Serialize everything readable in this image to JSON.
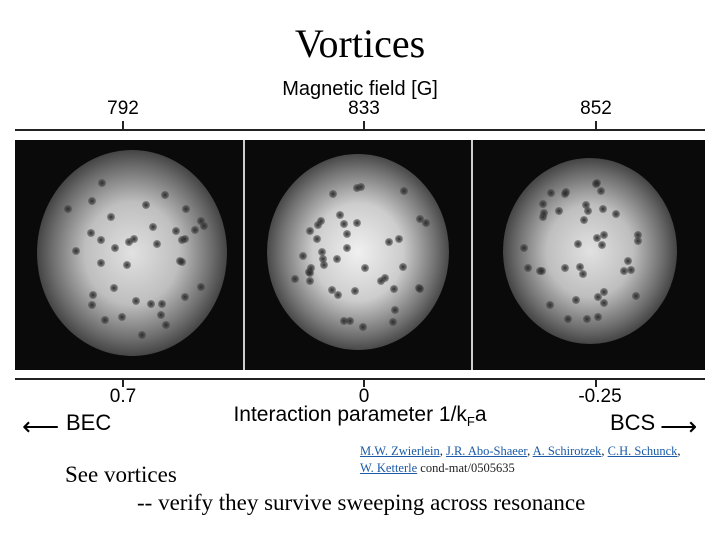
{
  "title": "Vortices",
  "figure": {
    "top_axis_title": "Magnetic field [G]",
    "top_ticks": [
      "792",
      "833",
      "852"
    ],
    "bottom_ticks": [
      "0.7",
      "0",
      "-0.25"
    ],
    "bottom_axis_title": "Interaction parameter 1/kFa",
    "left_regime": "BEC",
    "right_regime": "BCS"
  },
  "reference": {
    "authors": [
      "M.W. Zwierlein",
      "J.R. Abo-Shaeer",
      "A. Schirotzek",
      "C.H. Schunck",
      "W. Ketterle"
    ],
    "separator": ", ",
    "source": " cond-mat/0505635"
  },
  "captions": {
    "line1": "See vortices",
    "line2": "-- verify they survive sweeping across resonance"
  },
  "colors": {
    "background": "#ffffff",
    "link": "#1a5aa6",
    "image_bg": "#0a0a0a"
  }
}
